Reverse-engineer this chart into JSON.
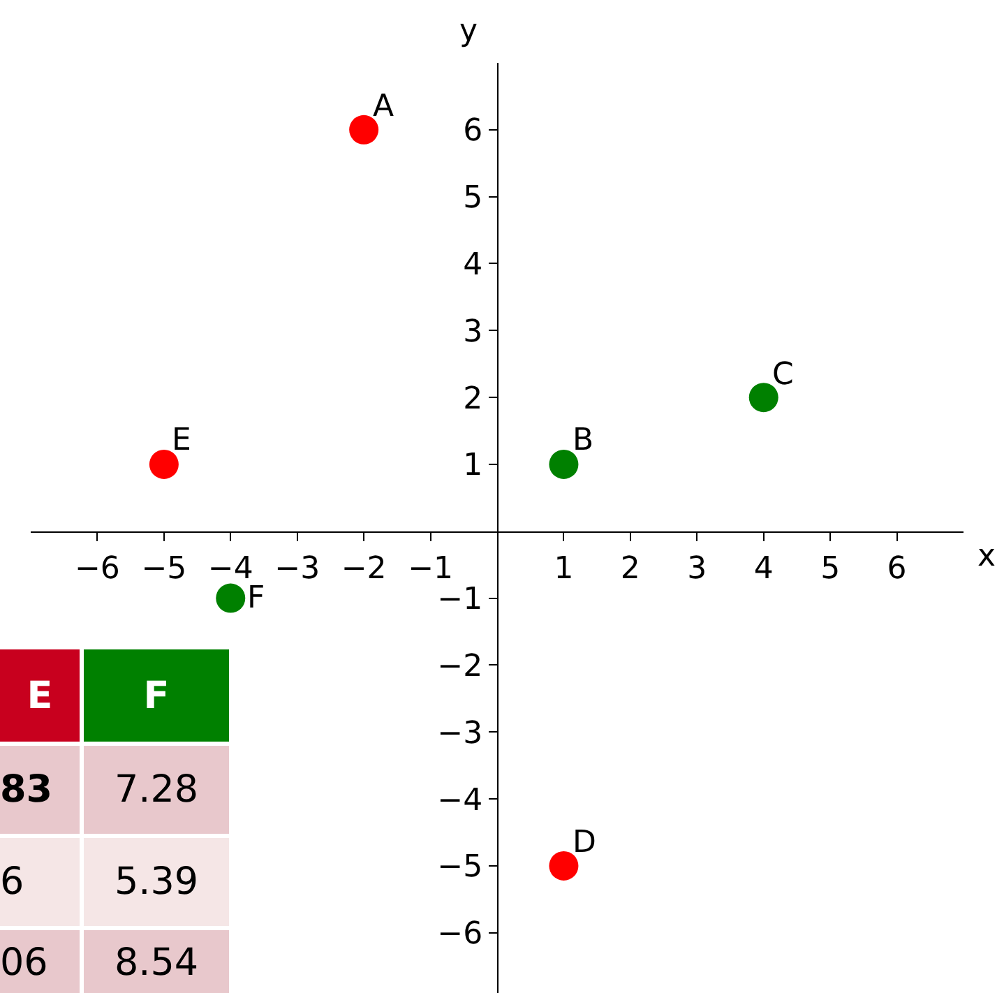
{
  "chart_data": {
    "type": "scatter",
    "xlabel": "x",
    "ylabel": "y",
    "series": [
      {
        "color": "#ff0000",
        "x": [
          -2,
          -5,
          1
        ],
        "values": [
          6,
          1,
          -5
        ]
      },
      {
        "color": "#008000",
        "x": [
          1,
          4,
          -4
        ],
        "values": [
          1,
          2,
          -1
        ]
      }
    ],
    "xlim": [
      -7,
      7
    ],
    "ylim": [
      -6.9,
      7
    ],
    "xticks": [
      -6,
      -5,
      -4,
      -3,
      -2,
      -1,
      1,
      2,
      3,
      4,
      5,
      6
    ],
    "yticks": [
      -6,
      -5,
      -4,
      -3,
      -2,
      -1,
      1,
      2,
      3,
      4,
      5,
      6
    ],
    "marker": "circle",
    "grid": false,
    "annotations": [
      {
        "text": "A",
        "x": -2,
        "y": 6
      },
      {
        "text": "B",
        "x": 1,
        "y": 1
      },
      {
        "text": "C",
        "x": 4,
        "y": 2
      },
      {
        "text": "D",
        "x": 1,
        "y": -5
      },
      {
        "text": "E",
        "x": -5,
        "y": 1
      },
      {
        "text": "F",
        "x": -4,
        "y": -1
      },
      "E",
      "F",
      "83",
      "7.28",
      "6",
      "5.39",
      "06",
      "8.54"
    ]
  }
}
